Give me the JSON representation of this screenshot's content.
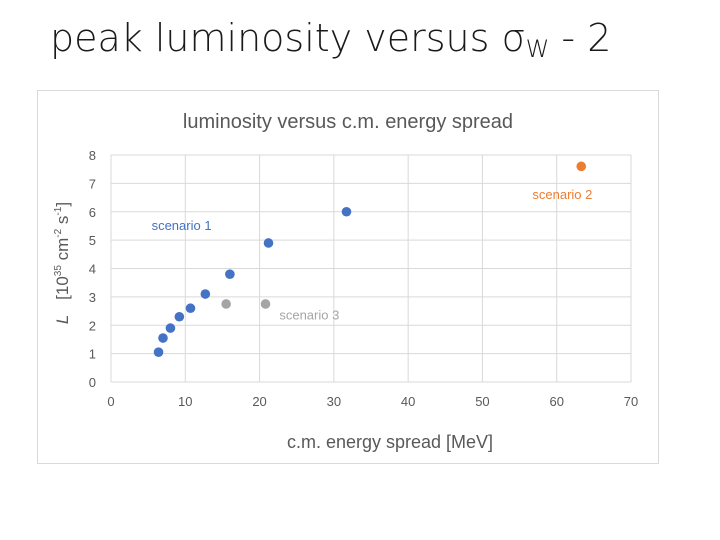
{
  "slide": {
    "title_main": "peak luminosity versus ",
    "title_symbol": "σ",
    "title_subscript": "W",
    "title_suffix": " - 2"
  },
  "colors": {
    "scenario_1": "#4472c4",
    "scenario_2": "#ed7d31",
    "scenario_3": "#a5a5a5",
    "gridline": "#d9d9d9",
    "axis_text": "#595959"
  },
  "chart_data": {
    "type": "scatter",
    "title": "luminosity versus c.m. energy spread",
    "xlabel": "c.m. energy spread [MeV]",
    "ylabel_prefix": "L",
    "ylabel_text": "[10",
    "ylabel_exp1": "35",
    "ylabel_mid": " cm",
    "ylabel_exp2": "-2",
    "ylabel_mid2": " s",
    "ylabel_exp3": "-1",
    "ylabel_end": "]",
    "xlim": [
      0,
      70
    ],
    "ylim": [
      0,
      8
    ],
    "xticks": [
      0,
      10,
      20,
      30,
      40,
      50,
      60,
      70
    ],
    "yticks": [
      0,
      1,
      2,
      3,
      4,
      5,
      6,
      7,
      8
    ],
    "grid": true,
    "series": [
      {
        "name": "scenario 1",
        "color": "#4472c4",
        "points": [
          [
            6.4,
            1.05
          ],
          [
            7.0,
            1.55
          ],
          [
            8.0,
            1.9
          ],
          [
            9.2,
            2.3
          ],
          [
            10.7,
            2.6
          ],
          [
            12.7,
            3.1
          ],
          [
            16.0,
            3.8
          ],
          [
            21.2,
            4.9
          ],
          [
            31.7,
            6.0
          ]
        ]
      },
      {
        "name": "scenario 2",
        "color": "#ed7d31",
        "points": [
          [
            63.3,
            7.6
          ]
        ]
      },
      {
        "name": "scenario 3",
        "color": "#a5a5a5",
        "points": [
          [
            15.5,
            2.75
          ],
          [
            20.8,
            2.75
          ]
        ]
      }
    ],
    "annotations": [
      "scenario 1",
      "scenario 2",
      "scenario 3"
    ]
  }
}
